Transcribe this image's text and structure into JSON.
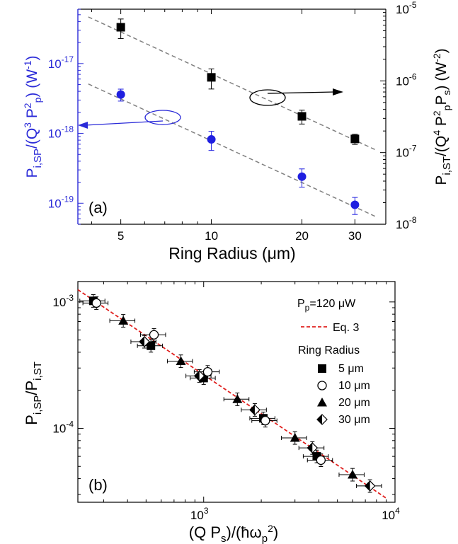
{
  "chart_data": [
    {
      "type": "scatter",
      "panel_label": "(a)",
      "xlabel": "Ring Radius (μm)",
      "xscale": "log",
      "xlim": [
        3.6,
        38
      ],
      "x_ticks": [
        5,
        10,
        20,
        30
      ],
      "x_tick_labels": [
        "5",
        "10",
        "20",
        "30"
      ],
      "left_axis": {
        "label_main": "P",
        "label_sub": "i,SP",
        "label_rest": "/(Q",
        "label_sup1": "3",
        "label_rest2": " P",
        "label_sup2": "2",
        "label_sub2": "p",
        "label_rest3": ") (W",
        "label_sup3": "-1",
        "label_rest4": ")",
        "scale": "log",
        "ylim": [
          5e-20,
          6e-17
        ],
        "ticks": [
          {
            "value": 1e-19,
            "base": "10",
            "exp": "-19"
          },
          {
            "value": 1e-18,
            "base": "10",
            "exp": "-18"
          },
          {
            "value": 1e-17,
            "base": "10",
            "exp": "-17"
          }
        ],
        "color": "#2a2ad8"
      },
      "right_axis": {
        "label_main": "P",
        "label_sub": "i,ST",
        "label_rest": "/(Q",
        "label_sup1": "4",
        "label_rest2": " P",
        "label_sup2": "2",
        "label_sub2": "p",
        "label_rest3": "P",
        "label_sub3": "s",
        "label_rest4": ") (W",
        "label_sup4": "-2",
        "label_rest5": ")",
        "scale": "log",
        "ylim": [
          1e-08,
          1e-05
        ],
        "ticks": [
          {
            "value": 1e-08,
            "base": "10",
            "exp": "-8"
          },
          {
            "value": 1e-07,
            "base": "10",
            "exp": "-7"
          },
          {
            "value": 1e-06,
            "base": "10",
            "exp": "-6"
          },
          {
            "value": 1e-05,
            "base": "10",
            "exp": "-5"
          }
        ],
        "color": "#000000"
      },
      "series": [
        {
          "axis": "left",
          "marker": "circle",
          "color": "#1f1fe0",
          "x": [
            5,
            10,
            20,
            30
          ],
          "y": [
            3.6e-18,
            8.2e-19,
            2.4e-19,
            9.5e-20
          ],
          "err": [
            7e-19,
            2.5e-19,
            7e-20,
            2.6e-20
          ],
          "fit_line": {
            "x": [
              3.9,
              35
            ],
            "y": [
              5.1e-18,
              6.5e-20
            ]
          }
        },
        {
          "axis": "right",
          "marker": "square",
          "color": "#000000",
          "x": [
            5,
            10,
            20,
            30
          ],
          "y": [
            5.6e-06,
            1.12e-06,
            3.2e-07,
            1.55e-07
          ],
          "err": [
            1.7e-06,
            3.5e-07,
            7e-08,
            2.5e-08
          ],
          "fit_line": {
            "x": [
              3.9,
              35
            ],
            "y": [
              7.8e-06,
              1.1e-07
            ]
          }
        }
      ]
    },
    {
      "type": "scatter",
      "panel_label": "(b)",
      "xlabel_parts": {
        "a": "(Q P",
        "sub": "s",
        "b": ")/(ħω",
        "sub2": "p",
        "sup": "2",
        "c": ")"
      },
      "xscale": "log",
      "xlim": [
        220,
        10000
      ],
      "x_ticks": [
        {
          "value": 1000,
          "base": "10",
          "exp": "3"
        },
        {
          "value": 10000,
          "base": "10",
          "exp": "4"
        }
      ],
      "ylabel_parts": {
        "a": "P",
        "sub": "i,SP",
        "b": "/P",
        "sub2": "i,ST"
      },
      "yscale": "log",
      "ylim": [
        2.6e-05,
        0.00145
      ],
      "y_ticks": [
        {
          "value": 0.0001,
          "base": "10",
          "exp": "-4"
        },
        {
          "value": 0.001,
          "base": "10",
          "exp": "-3"
        }
      ],
      "condition": {
        "a": "P",
        "sub": "p",
        "b": "=120 μW"
      },
      "fit_label": "Eq. 3",
      "fit_color": "#e0201e",
      "fit_line": {
        "x": [
          220,
          9000
        ],
        "y": [
          0.00125,
          2.8e-05
        ]
      },
      "legend_title": "Ring Radius",
      "series": [
        {
          "name": "5 μm",
          "marker": "square",
          "points": [
            [
              265,
              0.00102
            ],
            [
              530,
              0.00045
            ],
            [
              1000,
              0.00025
            ],
            [
              2050,
              0.00012
            ],
            [
              3900,
              6e-05
            ]
          ]
        },
        {
          "name": "10 μm",
          "marker": "circle-open",
          "points": [
            [
              275,
              0.00098
            ],
            [
              550,
              0.00055
            ],
            [
              1050,
              0.00028
            ],
            [
              2100,
              0.000115
            ],
            [
              4100,
              5.6e-05
            ]
          ]
        },
        {
          "name": "20 μm",
          "marker": "triangle",
          "points": [
            [
              380,
              0.00071
            ],
            [
              760,
              0.00034
            ],
            [
              1500,
              0.00017
            ],
            [
              3000,
              8.4e-05
            ],
            [
              6000,
              4.3e-05
            ]
          ]
        },
        {
          "name": "30 μm",
          "marker": "diamond-half",
          "points": [
            [
              490,
              0.000485
            ],
            [
              950,
              0.00026
            ],
            [
              1850,
              0.00014
            ],
            [
              3700,
              7e-05
            ],
            [
              7400,
              3.5e-05
            ]
          ]
        }
      ]
    }
  ]
}
